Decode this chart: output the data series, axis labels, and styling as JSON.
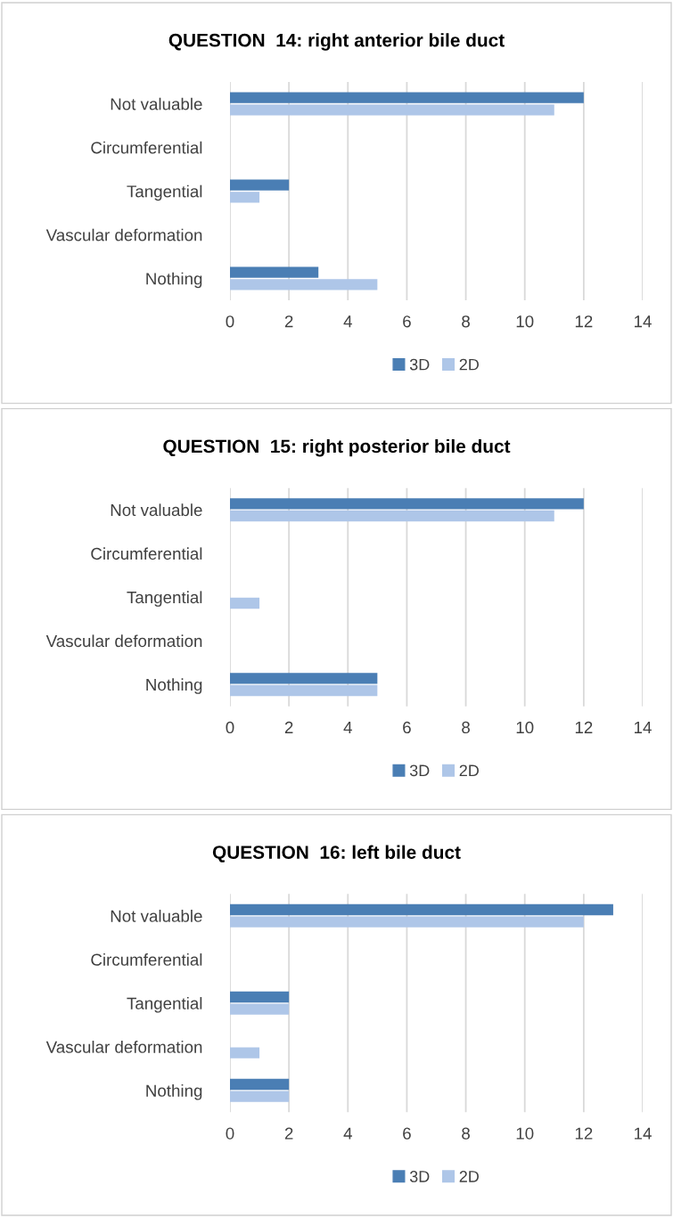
{
  "chart_data": [
    {
      "type": "bar",
      "orientation": "horizontal",
      "title": "QUESTION  14: right anterior bile duct",
      "categories": [
        "Not valuable",
        "Circumferential",
        "Tangential",
        "Vascular deformation",
        "Nothing"
      ],
      "xlim": [
        0,
        14
      ],
      "xticks": [
        0,
        2,
        4,
        6,
        8,
        10,
        12,
        14
      ],
      "grid": "x",
      "legend": "bottom",
      "series": [
        {
          "name": "3D",
          "color": "#4a7eb4",
          "values": [
            12,
            0,
            2,
            0,
            3
          ]
        },
        {
          "name": "2D",
          "color": "#aec6e8",
          "values": [
            11,
            0,
            1,
            0,
            5
          ]
        }
      ]
    },
    {
      "type": "bar",
      "orientation": "horizontal",
      "title": "QUESTION  15: right posterior bile duct",
      "categories": [
        "Not valuable",
        "Circumferential",
        "Tangential",
        "Vascular deformation",
        "Nothing"
      ],
      "xlim": [
        0,
        14
      ],
      "xticks": [
        0,
        2,
        4,
        6,
        8,
        10,
        12,
        14
      ],
      "grid": "x",
      "legend": "bottom",
      "series": [
        {
          "name": "3D",
          "color": "#4a7eb4",
          "values": [
            12,
            0,
            0,
            0,
            5
          ]
        },
        {
          "name": "2D",
          "color": "#aec6e8",
          "values": [
            11,
            0,
            1,
            0,
            5
          ]
        }
      ]
    },
    {
      "type": "bar",
      "orientation": "horizontal",
      "title": "QUESTION  16: left bile duct",
      "categories": [
        "Not valuable",
        "Circumferential",
        "Tangential",
        "Vascular deformation",
        "Nothing"
      ],
      "xlim": [
        0,
        14
      ],
      "xticks": [
        0,
        2,
        4,
        6,
        8,
        10,
        12,
        14
      ],
      "grid": "x",
      "legend": "bottom",
      "series": [
        {
          "name": "3D",
          "color": "#4a7eb4",
          "values": [
            13,
            0,
            2,
            0,
            2
          ]
        },
        {
          "name": "2D",
          "color": "#aec6e8",
          "values": [
            12,
            0,
            2,
            1,
            2
          ]
        }
      ]
    }
  ]
}
